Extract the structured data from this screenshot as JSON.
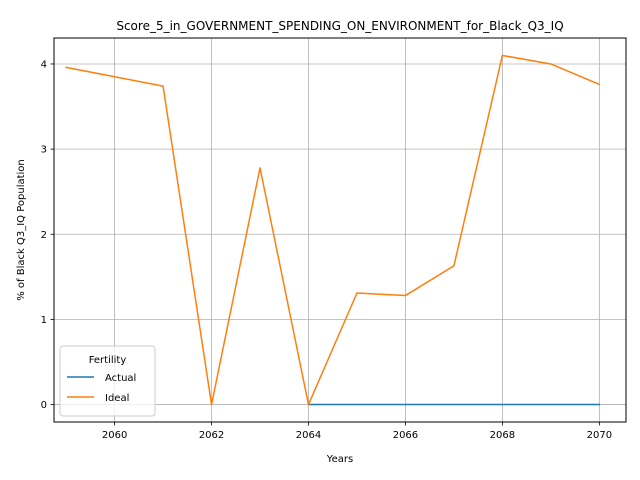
{
  "chart_data": {
    "type": "line",
    "title": "Score_5_in_GOVERNMENT_SPENDING_ON_ENVIRONMENT_for_Black_Q3_IQ",
    "xlabel": "Years",
    "ylabel": "% of Black Q3_IQ Population",
    "xlim": [
      2058.75,
      2070.55
    ],
    "ylim": [
      -0.205,
      4.305
    ],
    "xticks": [
      2060,
      2062,
      2064,
      2066,
      2068,
      2070
    ],
    "yticks": [
      0,
      1,
      2,
      3,
      4
    ],
    "grid": true,
    "legend": {
      "title": "Fertility",
      "placement": "lower-left"
    },
    "series": [
      {
        "name": "Actual",
        "color": "#1f77b4",
        "x": [
          2064,
          2065,
          2066,
          2067,
          2068,
          2069,
          2070
        ],
        "y": [
          0,
          0,
          0,
          0,
          0,
          0,
          0
        ]
      },
      {
        "name": "Ideal",
        "color": "#ff7f0e",
        "x": [
          2059,
          2060,
          2061,
          2062,
          2063,
          2064,
          2065,
          2066,
          2067,
          2068,
          2069,
          2070
        ],
        "y": [
          3.96,
          3.85,
          3.74,
          0.0,
          2.78,
          0.0,
          1.31,
          1.28,
          1.63,
          4.1,
          4.0,
          3.76
        ]
      }
    ]
  }
}
